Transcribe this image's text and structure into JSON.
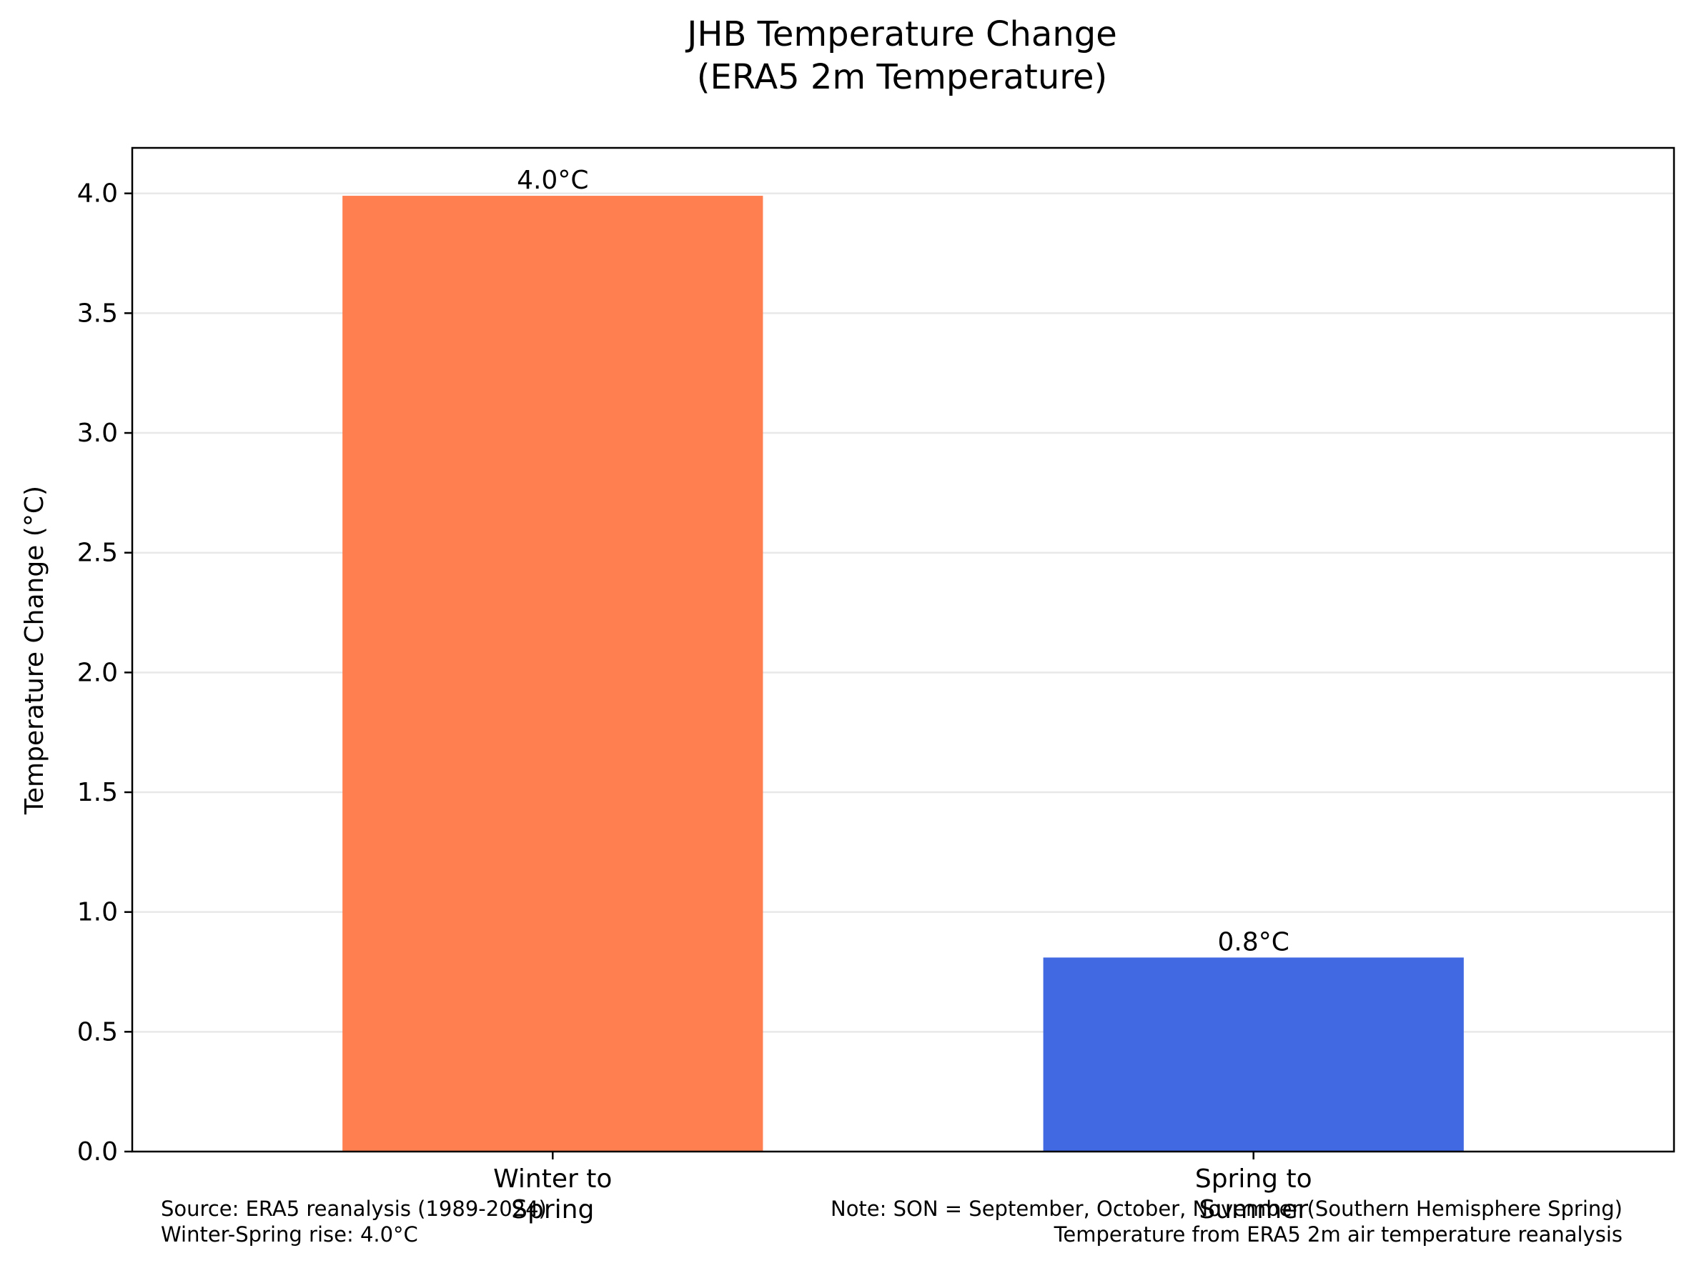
{
  "chart_data": {
    "type": "bar",
    "title_lines": [
      "JHB Temperature Change",
      "(ERA5 2m Temperature)"
    ],
    "ylabel": "Temperature Change (°C)",
    "xlabel": "",
    "ylim": [
      0,
      4.19
    ],
    "yticks": [
      "0.0",
      "0.5",
      "1.0",
      "1.5",
      "2.0",
      "2.5",
      "3.0",
      "3.5",
      "4.0"
    ],
    "grid": "horizontal",
    "categories": [
      {
        "line1": "Winter to",
        "line2": "Spring"
      },
      {
        "line1": "Spring to",
        "line2": "Summer"
      }
    ],
    "values": [
      3.99,
      0.81
    ],
    "value_labels": [
      "4.0°C",
      "0.8°C"
    ],
    "colors": [
      "#FF7F50",
      "#4169E1"
    ]
  },
  "footer": {
    "source": "Source: ERA5 reanalysis (1989-2024)",
    "rise": "Winter-Spring rise: 4.0°C",
    "note": "Note: SON = September, October, November (Southern Hemisphere Spring)",
    "temp_note": "Temperature from ERA5 2m air temperature reanalysis"
  }
}
